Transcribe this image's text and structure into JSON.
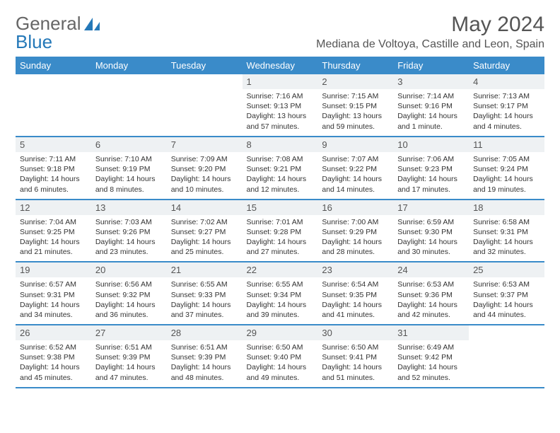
{
  "brand": {
    "part1": "General",
    "part2": "Blue"
  },
  "title": "May 2024",
  "location": "Mediana de Voltoya, Castille and Leon, Spain",
  "colors": {
    "header_bg": "#3a8bc9",
    "header_text": "#ffffff",
    "daynum_bg": "#eef1f3",
    "row_border": "#3a8bc9",
    "text": "#333333",
    "title_color": "#555555",
    "logo_gray": "#666666",
    "logo_blue": "#2478b8",
    "page_bg": "#ffffff"
  },
  "fonts": {
    "title_size_pt": 22,
    "location_size_pt": 12,
    "weekday_size_pt": 10,
    "daynum_size_pt": 10,
    "body_size_pt": 8
  },
  "weekdays": [
    "Sunday",
    "Monday",
    "Tuesday",
    "Wednesday",
    "Thursday",
    "Friday",
    "Saturday"
  ],
  "weeks": [
    [
      null,
      null,
      null,
      {
        "n": "1",
        "sr": "Sunrise: 7:16 AM",
        "ss": "Sunset: 9:13 PM",
        "dl": "Daylight: 13 hours and 57 minutes."
      },
      {
        "n": "2",
        "sr": "Sunrise: 7:15 AM",
        "ss": "Sunset: 9:15 PM",
        "dl": "Daylight: 13 hours and 59 minutes."
      },
      {
        "n": "3",
        "sr": "Sunrise: 7:14 AM",
        "ss": "Sunset: 9:16 PM",
        "dl": "Daylight: 14 hours and 1 minute."
      },
      {
        "n": "4",
        "sr": "Sunrise: 7:13 AM",
        "ss": "Sunset: 9:17 PM",
        "dl": "Daylight: 14 hours and 4 minutes."
      }
    ],
    [
      {
        "n": "5",
        "sr": "Sunrise: 7:11 AM",
        "ss": "Sunset: 9:18 PM",
        "dl": "Daylight: 14 hours and 6 minutes."
      },
      {
        "n": "6",
        "sr": "Sunrise: 7:10 AM",
        "ss": "Sunset: 9:19 PM",
        "dl": "Daylight: 14 hours and 8 minutes."
      },
      {
        "n": "7",
        "sr": "Sunrise: 7:09 AM",
        "ss": "Sunset: 9:20 PM",
        "dl": "Daylight: 14 hours and 10 minutes."
      },
      {
        "n": "8",
        "sr": "Sunrise: 7:08 AM",
        "ss": "Sunset: 9:21 PM",
        "dl": "Daylight: 14 hours and 12 minutes."
      },
      {
        "n": "9",
        "sr": "Sunrise: 7:07 AM",
        "ss": "Sunset: 9:22 PM",
        "dl": "Daylight: 14 hours and 14 minutes."
      },
      {
        "n": "10",
        "sr": "Sunrise: 7:06 AM",
        "ss": "Sunset: 9:23 PM",
        "dl": "Daylight: 14 hours and 17 minutes."
      },
      {
        "n": "11",
        "sr": "Sunrise: 7:05 AM",
        "ss": "Sunset: 9:24 PM",
        "dl": "Daylight: 14 hours and 19 minutes."
      }
    ],
    [
      {
        "n": "12",
        "sr": "Sunrise: 7:04 AM",
        "ss": "Sunset: 9:25 PM",
        "dl": "Daylight: 14 hours and 21 minutes."
      },
      {
        "n": "13",
        "sr": "Sunrise: 7:03 AM",
        "ss": "Sunset: 9:26 PM",
        "dl": "Daylight: 14 hours and 23 minutes."
      },
      {
        "n": "14",
        "sr": "Sunrise: 7:02 AM",
        "ss": "Sunset: 9:27 PM",
        "dl": "Daylight: 14 hours and 25 minutes."
      },
      {
        "n": "15",
        "sr": "Sunrise: 7:01 AM",
        "ss": "Sunset: 9:28 PM",
        "dl": "Daylight: 14 hours and 27 minutes."
      },
      {
        "n": "16",
        "sr": "Sunrise: 7:00 AM",
        "ss": "Sunset: 9:29 PM",
        "dl": "Daylight: 14 hours and 28 minutes."
      },
      {
        "n": "17",
        "sr": "Sunrise: 6:59 AM",
        "ss": "Sunset: 9:30 PM",
        "dl": "Daylight: 14 hours and 30 minutes."
      },
      {
        "n": "18",
        "sr": "Sunrise: 6:58 AM",
        "ss": "Sunset: 9:31 PM",
        "dl": "Daylight: 14 hours and 32 minutes."
      }
    ],
    [
      {
        "n": "19",
        "sr": "Sunrise: 6:57 AM",
        "ss": "Sunset: 9:31 PM",
        "dl": "Daylight: 14 hours and 34 minutes."
      },
      {
        "n": "20",
        "sr": "Sunrise: 6:56 AM",
        "ss": "Sunset: 9:32 PM",
        "dl": "Daylight: 14 hours and 36 minutes."
      },
      {
        "n": "21",
        "sr": "Sunrise: 6:55 AM",
        "ss": "Sunset: 9:33 PM",
        "dl": "Daylight: 14 hours and 37 minutes."
      },
      {
        "n": "22",
        "sr": "Sunrise: 6:55 AM",
        "ss": "Sunset: 9:34 PM",
        "dl": "Daylight: 14 hours and 39 minutes."
      },
      {
        "n": "23",
        "sr": "Sunrise: 6:54 AM",
        "ss": "Sunset: 9:35 PM",
        "dl": "Daylight: 14 hours and 41 minutes."
      },
      {
        "n": "24",
        "sr": "Sunrise: 6:53 AM",
        "ss": "Sunset: 9:36 PM",
        "dl": "Daylight: 14 hours and 42 minutes."
      },
      {
        "n": "25",
        "sr": "Sunrise: 6:53 AM",
        "ss": "Sunset: 9:37 PM",
        "dl": "Daylight: 14 hours and 44 minutes."
      }
    ],
    [
      {
        "n": "26",
        "sr": "Sunrise: 6:52 AM",
        "ss": "Sunset: 9:38 PM",
        "dl": "Daylight: 14 hours and 45 minutes."
      },
      {
        "n": "27",
        "sr": "Sunrise: 6:51 AM",
        "ss": "Sunset: 9:39 PM",
        "dl": "Daylight: 14 hours and 47 minutes."
      },
      {
        "n": "28",
        "sr": "Sunrise: 6:51 AM",
        "ss": "Sunset: 9:39 PM",
        "dl": "Daylight: 14 hours and 48 minutes."
      },
      {
        "n": "29",
        "sr": "Sunrise: 6:50 AM",
        "ss": "Sunset: 9:40 PM",
        "dl": "Daylight: 14 hours and 49 minutes."
      },
      {
        "n": "30",
        "sr": "Sunrise: 6:50 AM",
        "ss": "Sunset: 9:41 PM",
        "dl": "Daylight: 14 hours and 51 minutes."
      },
      {
        "n": "31",
        "sr": "Sunrise: 6:49 AM",
        "ss": "Sunset: 9:42 PM",
        "dl": "Daylight: 14 hours and 52 minutes."
      },
      null
    ]
  ]
}
